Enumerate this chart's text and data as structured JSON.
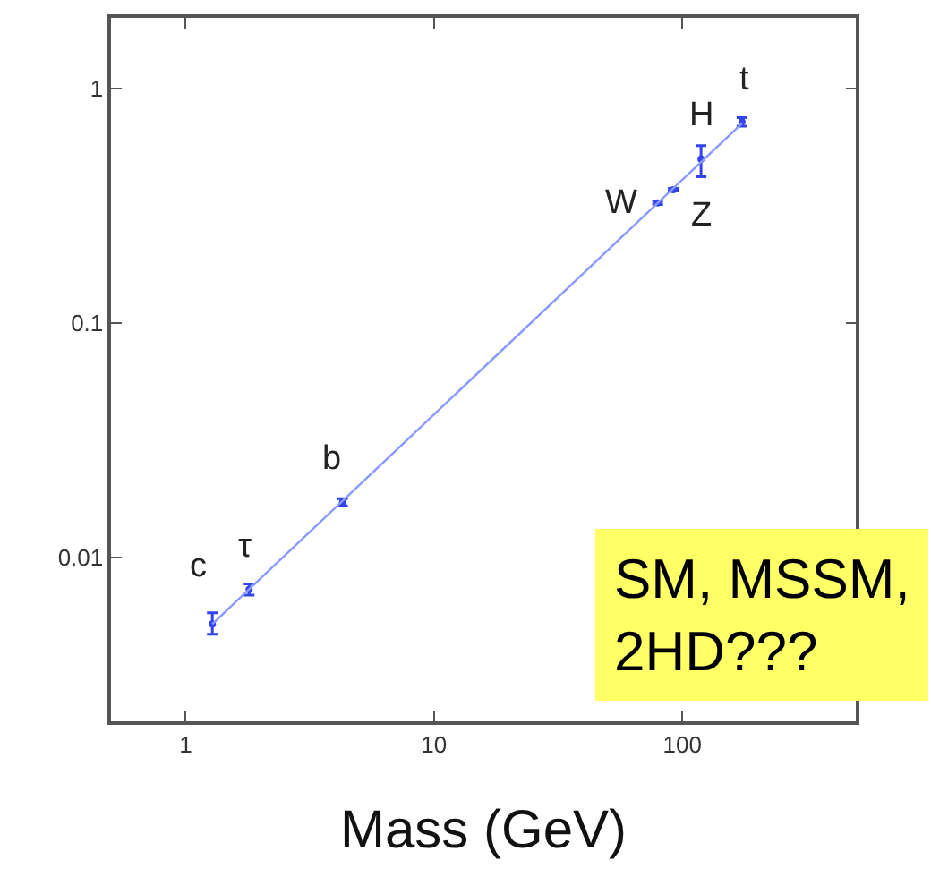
{
  "chart_data": {
    "type": "scatter",
    "xlabel": "Mass (GeV)",
    "log": "xy",
    "xlim": [
      0.5,
      500
    ],
    "ylim": [
      0.002,
      2
    ],
    "xticks": [
      1,
      10,
      100
    ],
    "yticks": [
      0.01,
      0.1,
      1
    ],
    "series": [
      {
        "color": "#3344ee",
        "marker": "circle",
        "x": [
          1.28,
          1.8,
          4.28,
          79.6,
          92,
          119,
          174
        ],
        "values": [
          0.0052,
          0.0073,
          0.0172,
          0.325,
          0.37,
          0.5,
          0.72
        ],
        "errors": [
          [
            0.0047,
            0.0058
          ],
          [
            0.0069,
            0.0077
          ],
          [
            0.0166,
            0.0178
          ],
          [
            0.32,
            0.33
          ],
          [
            0.365,
            0.375
          ],
          [
            0.42,
            0.57
          ],
          [
            0.69,
            0.75
          ]
        ]
      },
      {
        "type": "line",
        "color": "#8899ff",
        "x": [
          1.28,
          174
        ],
        "values": [
          0.0052,
          0.71
        ]
      }
    ],
    "annotations": [
      {
        "text": "c",
        "x": 1.28,
        "y": 0.0052
      },
      {
        "text": "τ",
        "x": 1.8,
        "y": 0.0073
      },
      {
        "text": "b",
        "x": 4.28,
        "y": 0.0172
      },
      {
        "text": "W",
        "x": 79.6,
        "y": 0.325
      },
      {
        "text": "Z",
        "x": 92,
        "y": 0.37
      },
      {
        "text": "H",
        "x": 119,
        "y": 0.5
      },
      {
        "text": "t",
        "x": 174,
        "y": 0.72
      },
      "SM, MSSM,\n2HD???"
    ]
  }
}
